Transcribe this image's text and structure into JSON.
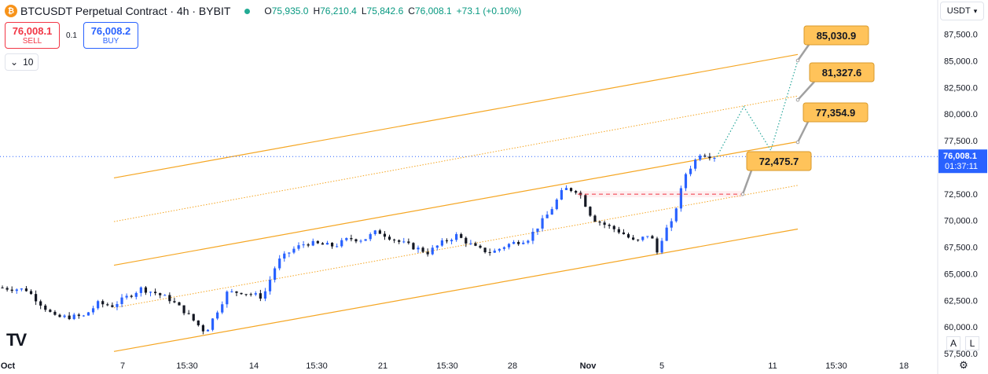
{
  "header": {
    "coin_glyph": "₿",
    "symbol": "BTCUSDT Perpetual Contract · 4h · BYBIT",
    "ohlc": [
      {
        "k": "O",
        "v": "75,935.0"
      },
      {
        "k": "H",
        "v": "76,210.4"
      },
      {
        "k": "L",
        "v": "75,842.6"
      },
      {
        "k": "C",
        "v": "76,008.1"
      },
      {
        "k": "",
        "v": "+73.1 (+0.10%)"
      }
    ]
  },
  "trade": {
    "sell_price": "76,008.1",
    "sell_label": "SELL",
    "spread": "0.1",
    "buy_price": "76,008.2",
    "buy_label": "BUY"
  },
  "lots": {
    "icon": "chevron-down-icon",
    "value": "10"
  },
  "currency": {
    "label": "USDT"
  },
  "colors": {
    "up": "#2962ff",
    "down": "#131722",
    "channel": "#f5a623",
    "label_fill": "#ffc35a",
    "projection": "#26a69a",
    "last_price": "#2962ff",
    "dashed_level": "#f23645"
  },
  "chart_data": {
    "type": "candlestick",
    "timeframe": "4h",
    "ylim": [
      57500,
      88500
    ],
    "y_ticks": [
      "57,500.0",
      "60,000.0",
      "62,500.0",
      "65,000.0",
      "67,500.0",
      "70,000.0",
      "72,500.0",
      "75,000.0",
      "77,500.0",
      "80,000.0",
      "82,500.0",
      "85,000.0",
      "87,500.0"
    ],
    "x_ticks": [
      "Oct",
      "7",
      "15:30",
      "14",
      "15:30",
      "21",
      "15:30",
      "28",
      "Nov",
      "5",
      "11",
      "15:30",
      "18"
    ],
    "x_tick_bold": [
      "Oct",
      "Nov"
    ],
    "last_price": {
      "value": "76,008.1",
      "countdown": "01:37:11"
    },
    "price_labels": [
      "85,030.9",
      "81,327.6",
      "77,354.9",
      "72,475.7"
    ],
    "dashed_level": 72475.7,
    "channel": {
      "upper": [
        [
          -0.5,
          74000
        ],
        [
          3.0,
          85600
        ]
      ],
      "upper_quarter": [
        [
          -0.5,
          69900
        ],
        [
          3.0,
          81700
        ]
      ],
      "mid": [
        [
          -0.5,
          65800
        ],
        [
          3.0,
          77400
        ]
      ],
      "lower_quarter": [
        [
          -0.5,
          61800
        ],
        [
          3.0,
          73300
        ]
      ],
      "lower": [
        [
          -0.5,
          57700
        ],
        [
          3.0,
          69200
        ]
      ]
    },
    "projection": [
      [
        2.55,
        76000
      ],
      [
        2.7,
        80700
      ],
      [
        2.85,
        76600
      ],
      [
        3.0,
        85030.9
      ]
    ],
    "candle_waypoints": [
      [
        -2.0,
        63700
      ],
      [
        -1.8,
        63500
      ],
      [
        -1.6,
        60900
      ],
      [
        -1.4,
        61000
      ],
      [
        -1.3,
        62200
      ],
      [
        -1.2,
        62000
      ],
      [
        -1.0,
        63600
      ],
      [
        -0.9,
        63200
      ],
      [
        -0.8,
        62600
      ],
      [
        -0.7,
        61500
      ],
      [
        -0.55,
        59500
      ],
      [
        -0.4,
        63200
      ],
      [
        -0.3,
        63300
      ],
      [
        -0.15,
        62800
      ],
      [
        -0.05,
        66100
      ],
      [
        0.05,
        67200
      ],
      [
        0.15,
        67900
      ],
      [
        0.35,
        67600
      ],
      [
        0.45,
        68300
      ],
      [
        0.55,
        68200
      ],
      [
        0.65,
        69000
      ],
      [
        0.8,
        68000
      ],
      [
        0.9,
        67500
      ],
      [
        1.0,
        67000
      ],
      [
        1.1,
        67900
      ],
      [
        1.2,
        68600
      ],
      [
        1.35,
        67300
      ],
      [
        1.45,
        67000
      ],
      [
        1.55,
        67700
      ],
      [
        1.7,
        68300
      ],
      [
        1.85,
        70800
      ],
      [
        1.95,
        73000
      ],
      [
        2.05,
        72800
      ],
      [
        2.15,
        70200
      ],
      [
        2.25,
        69500
      ],
      [
        2.35,
        68900
      ],
      [
        2.45,
        67900
      ],
      [
        2.55,
        68800
      ],
      [
        2.6,
        67000
      ],
      [
        2.65,
        69000
      ],
      [
        2.7,
        69700
      ],
      [
        2.8,
        74400
      ],
      [
        2.9,
        76300
      ],
      [
        3.0,
        76008
      ]
    ]
  }
}
